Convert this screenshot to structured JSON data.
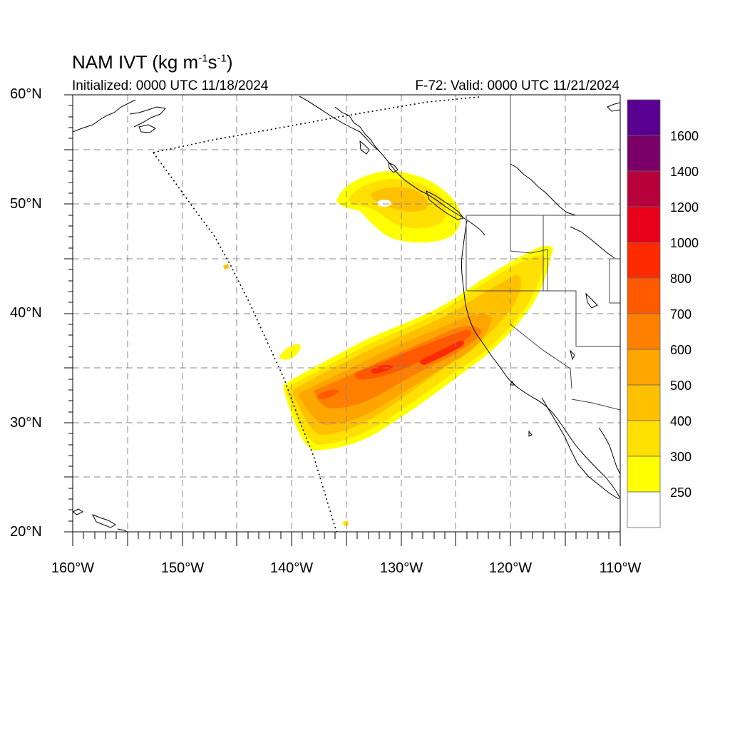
{
  "header": {
    "title_prefix": "NAM IVT (kg m",
    "title_exp1": "-1",
    "title_mid": "s",
    "title_exp2": "-1",
    "title_suffix": ")",
    "initialized": "Initialized: 0000 UTC 11/18/2024",
    "valid": "F-72: Valid: 0000 UTC 11/21/2024"
  },
  "axes": {
    "lat_labels": [
      "60°N",
      "50°N",
      "40°N",
      "30°N",
      "20°N"
    ],
    "lon_labels": [
      "160°W",
      "150°W",
      "140°W",
      "130°W",
      "120°W",
      "110°W"
    ],
    "lon_range": [
      -160,
      -110
    ],
    "lat_range": [
      20,
      60
    ],
    "grid": true,
    "grid_spacing_deg": 5
  },
  "colorbar": {
    "labels": [
      "1600",
      "1400",
      "1200",
      "1000",
      "800",
      "700",
      "600",
      "500",
      "400",
      "300",
      "250"
    ],
    "bins": [
      {
        "label": "",
        "color": "#5a0090"
      },
      {
        "label": "",
        "color": "#7a0068"
      },
      {
        "label": "",
        "color": "#b8003c"
      },
      {
        "label": "",
        "color": "#e8001a"
      },
      {
        "label": "",
        "color": "#ff2a00"
      },
      {
        "label": "",
        "color": "#ff5a00"
      },
      {
        "label": "",
        "color": "#ff8000"
      },
      {
        "label": "",
        "color": "#ffa500"
      },
      {
        "label": "",
        "color": "#ffc000"
      },
      {
        "label": "",
        "color": "#ffe000"
      },
      {
        "label": "",
        "color": "#ffff00"
      },
      {
        "label": "",
        "color": "#ffffff"
      }
    ]
  }
}
